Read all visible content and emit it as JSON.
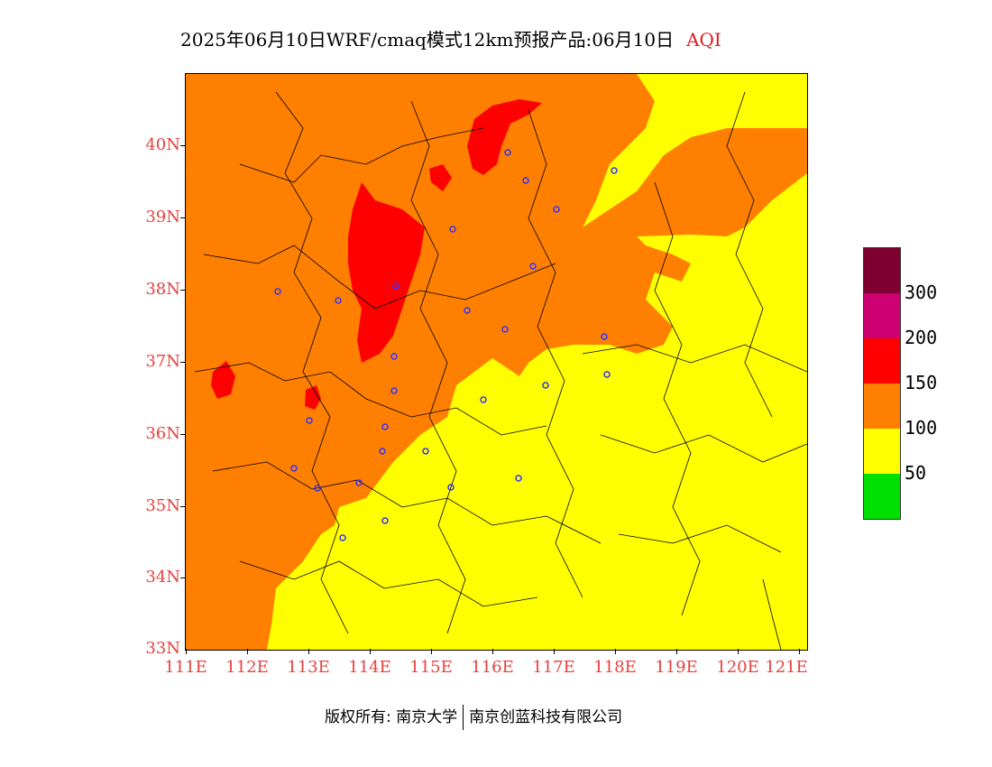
{
  "title": {
    "main": "2025年06月10日WRF/cmaq模式12km预报产品:06月10日",
    "variable": "AQI"
  },
  "axes": {
    "lat_labels": [
      "40N",
      "39N",
      "38N",
      "37N",
      "36N",
      "35N",
      "34N",
      "33N"
    ],
    "lon_labels": [
      "111E",
      "112E",
      "113E",
      "114E",
      "115E",
      "116E",
      "117E",
      "118E",
      "119E",
      "120E",
      "121E"
    ]
  },
  "legend": {
    "labels": [
      "300",
      "200",
      "150",
      "100",
      "50"
    ],
    "colors": [
      "#7f0030",
      "#cc0070",
      "#ff0000",
      "#ff7f00",
      "#ffff00",
      "#00e000"
    ]
  },
  "colors": {
    "good": "#00e000",
    "moderate": "#ffff00",
    "unhealthy_sensitive": "#ff7f00",
    "unhealthy": "#ff0000",
    "very_unhealthy": "#cc0070",
    "hazardous": "#7f0030",
    "city_marker": "#3333ff",
    "axis_text": "#e8413d"
  },
  "footer": {
    "copyright": "版权所有: 南京大学",
    "company": "南京创蓝科技有限公司"
  }
}
